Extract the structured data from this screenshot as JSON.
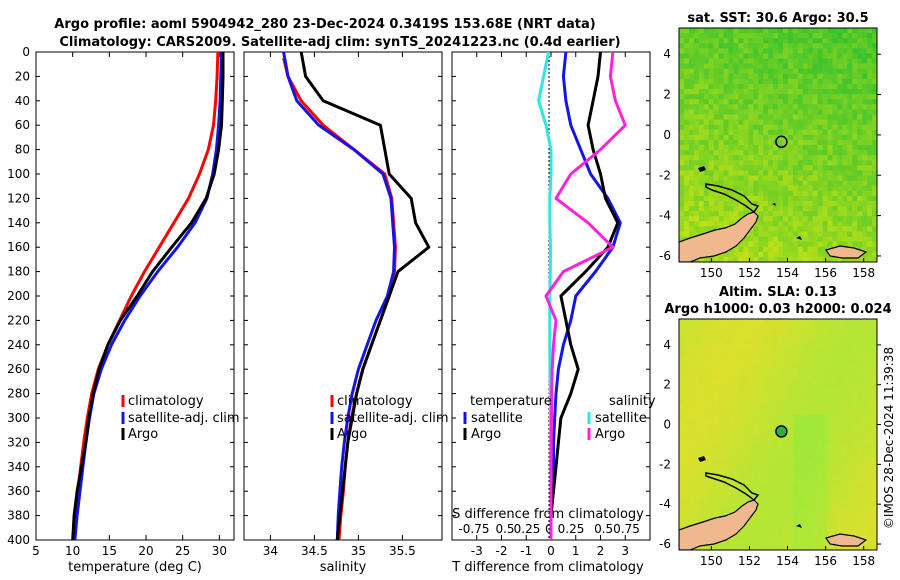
{
  "title_line1": "Argo profile: aoml 5904942_280 23-Dec-2024 0.3419S 153.68E (NRT data)",
  "title_line2": "Climatology: CARS2009. Satellite-adj clim: synTS_20241223.nc (0.4d earlier)",
  "watermark": "©IMOS 28-Dec-2024 11:39:38",
  "colors": {
    "red": "#ff0000",
    "blue": "#1414e6",
    "black": "#000000",
    "cyan": "#2ee6e6",
    "magenta": "#ff22dd"
  },
  "chart_data": [
    {
      "type": "line",
      "name": "temperature",
      "xlabel": "temperature (deg C)",
      "xlim": [
        5,
        32
      ],
      "xticks": [
        5,
        10,
        15,
        20,
        25,
        30
      ],
      "ylim": [
        0,
        400
      ],
      "yticks": [
        0,
        20,
        40,
        60,
        80,
        100,
        120,
        140,
        160,
        180,
        200,
        220,
        240,
        260,
        280,
        300,
        320,
        340,
        360,
        380,
        400
      ],
      "yreversed": true,
      "legend": [
        "climatology",
        "satellite-adj. clim",
        "Argo"
      ],
      "series": [
        {
          "name": "climatology",
          "color": "red",
          "points": [
            [
              29.8,
              0
            ],
            [
              29.7,
              20
            ],
            [
              29.5,
              40
            ],
            [
              29.2,
              60
            ],
            [
              28.5,
              80
            ],
            [
              27.3,
              100
            ],
            [
              25.8,
              120
            ],
            [
              23.8,
              140
            ],
            [
              21.8,
              160
            ],
            [
              19.8,
              180
            ],
            [
              18.0,
              200
            ],
            [
              16.4,
              220
            ],
            [
              14.8,
              240
            ],
            [
              13.5,
              260
            ],
            [
              12.6,
              280
            ],
            [
              12.0,
              300
            ],
            [
              11.5,
              320
            ],
            [
              11.1,
              340
            ],
            [
              10.7,
              360
            ],
            [
              10.4,
              380
            ],
            [
              10.2,
              400
            ]
          ]
        },
        {
          "name": "satellite-adj. clim",
          "color": "blue",
          "points": [
            [
              30.3,
              0
            ],
            [
              30.2,
              20
            ],
            [
              30.1,
              40
            ],
            [
              29.9,
              60
            ],
            [
              29.6,
              80
            ],
            [
              29.1,
              100
            ],
            [
              28.3,
              120
            ],
            [
              26.7,
              140
            ],
            [
              24.3,
              160
            ],
            [
              21.6,
              180
            ],
            [
              19.2,
              200
            ],
            [
              17.1,
              220
            ],
            [
              15.3,
              240
            ],
            [
              13.9,
              260
            ],
            [
              12.9,
              280
            ],
            [
              12.3,
              300
            ],
            [
              11.8,
              320
            ],
            [
              11.4,
              340
            ],
            [
              11.0,
              360
            ],
            [
              10.6,
              380
            ],
            [
              10.3,
              400
            ]
          ]
        },
        {
          "name": "Argo",
          "color": "black",
          "points": [
            [
              30.5,
              0
            ],
            [
              30.5,
              20
            ],
            [
              30.4,
              40
            ],
            [
              30.3,
              60
            ],
            [
              29.9,
              80
            ],
            [
              29.3,
              100
            ],
            [
              28.2,
              120
            ],
            [
              26.2,
              140
            ],
            [
              23.5,
              160
            ],
            [
              20.9,
              180
            ],
            [
              18.8,
              200
            ],
            [
              16.5,
              220
            ],
            [
              14.8,
              240
            ],
            [
              13.6,
              260
            ],
            [
              12.8,
              280
            ],
            [
              12.2,
              300
            ],
            [
              11.8,
              320
            ],
            [
              11.2,
              340
            ],
            [
              10.6,
              360
            ],
            [
              10.2,
              380
            ],
            [
              10.0,
              400
            ]
          ]
        }
      ]
    },
    {
      "type": "line",
      "name": "salinity",
      "xlabel": "salinity",
      "xlim": [
        33.7,
        35.95
      ],
      "xticks": [
        34,
        34.5,
        35,
        35.5
      ],
      "ylim": [
        0,
        400
      ],
      "yreversed": true,
      "legend": [
        "climatology",
        "satellite-adj. clim",
        "Argo"
      ],
      "series": [
        {
          "name": "climatology",
          "color": "red",
          "points": [
            [
              34.15,
              5
            ],
            [
              34.2,
              20
            ],
            [
              34.35,
              40
            ],
            [
              34.6,
              60
            ],
            [
              34.95,
              80
            ],
            [
              35.3,
              100
            ],
            [
              35.38,
              120
            ],
            [
              35.4,
              140
            ],
            [
              35.42,
              160
            ],
            [
              35.41,
              180
            ],
            [
              35.35,
              200
            ],
            [
              35.25,
              220
            ],
            [
              35.15,
              240
            ],
            [
              35.05,
              260
            ],
            [
              34.98,
              280
            ],
            [
              34.92,
              300
            ],
            [
              34.88,
              320
            ],
            [
              34.85,
              340
            ],
            [
              34.83,
              360
            ],
            [
              34.8,
              380
            ],
            [
              34.78,
              400
            ]
          ]
        },
        {
          "name": "satellite-adj. clim",
          "color": "blue",
          "points": [
            [
              34.15,
              0
            ],
            [
              34.2,
              20
            ],
            [
              34.3,
              40
            ],
            [
              34.55,
              60
            ],
            [
              34.95,
              80
            ],
            [
              35.28,
              100
            ],
            [
              35.37,
              120
            ],
            [
              35.39,
              140
            ],
            [
              35.41,
              160
            ],
            [
              35.4,
              180
            ],
            [
              35.33,
              200
            ],
            [
              35.2,
              220
            ],
            [
              35.1,
              240
            ],
            [
              35.0,
              260
            ],
            [
              34.93,
              280
            ],
            [
              34.88,
              300
            ],
            [
              34.84,
              320
            ],
            [
              34.81,
              340
            ],
            [
              34.79,
              360
            ],
            [
              34.77,
              380
            ],
            [
              34.76,
              400
            ]
          ]
        },
        {
          "name": "Argo",
          "color": "black",
          "points": [
            [
              34.35,
              0
            ],
            [
              34.4,
              20
            ],
            [
              34.6,
              40
            ],
            [
              35.25,
              60
            ],
            [
              35.3,
              80
            ],
            [
              35.35,
              100
            ],
            [
              35.6,
              120
            ],
            [
              35.65,
              140
            ],
            [
              35.8,
              160
            ],
            [
              35.45,
              180
            ],
            [
              35.35,
              200
            ],
            [
              35.25,
              220
            ],
            [
              35.15,
              240
            ],
            [
              35.05,
              260
            ],
            [
              34.98,
              280
            ],
            [
              34.93,
              300
            ],
            [
              34.88,
              320
            ],
            [
              34.85,
              340
            ],
            [
              34.82,
              360
            ],
            [
              34.79,
              380
            ],
            [
              34.76,
              400
            ]
          ]
        }
      ]
    },
    {
      "type": "line",
      "name": "difference",
      "xlabel": "T difference from climatology",
      "xlim": [
        -4,
        4
      ],
      "xticks": [
        -3,
        -2,
        -1,
        0,
        1,
        2,
        3
      ],
      "top_axis_label": "S difference from climatology",
      "top_ticks": [
        "-0.75",
        "0.5",
        "0.25",
        "0",
        "0.25",
        "0.50.75"
      ],
      "ylim": [
        0,
        400
      ],
      "yreversed": true,
      "legend_temperature": {
        "heading": "temperature",
        "entries": [
          "satellite",
          "Argo"
        ]
      },
      "legend_salinity": {
        "heading": "salinity",
        "entries": [
          "satellite",
          "Argo"
        ]
      },
      "series": [
        {
          "name": "temperature satellite",
          "color": "blue",
          "points": [
            [
              0.6,
              0
            ],
            [
              0.5,
              20
            ],
            [
              0.6,
              40
            ],
            [
              0.8,
              60
            ],
            [
              1.2,
              80
            ],
            [
              1.6,
              100
            ],
            [
              2.3,
              120
            ],
            [
              2.8,
              140
            ],
            [
              2.5,
              160
            ],
            [
              1.8,
              180
            ],
            [
              1.0,
              200
            ],
            [
              0.8,
              220
            ],
            [
              0.5,
              240
            ],
            [
              0.3,
              260
            ],
            [
              0.2,
              280
            ],
            [
              0.15,
              300
            ],
            [
              0.1,
              320
            ],
            [
              0.1,
              340
            ],
            [
              0.05,
              360
            ],
            [
              0.0,
              380
            ],
            [
              0.0,
              400
            ]
          ]
        },
        {
          "name": "temperature Argo",
          "color": "black",
          "points": [
            [
              2.0,
              0
            ],
            [
              1.9,
              20
            ],
            [
              1.7,
              40
            ],
            [
              1.5,
              60
            ],
            [
              1.7,
              80
            ],
            [
              2.0,
              100
            ],
            [
              2.2,
              120
            ],
            [
              2.7,
              140
            ],
            [
              2.3,
              160
            ],
            [
              1.4,
              180
            ],
            [
              0.4,
              200
            ],
            [
              0.6,
              220
            ],
            [
              0.8,
              240
            ],
            [
              1.1,
              260
            ],
            [
              0.8,
              280
            ],
            [
              0.4,
              300
            ],
            [
              0.3,
              320
            ],
            [
              0.2,
              340
            ],
            [
              0.1,
              360
            ],
            [
              0.0,
              380
            ],
            [
              0.0,
              400
            ]
          ]
        },
        {
          "name": "salinity satellite",
          "color": "cyan",
          "points": [
            [
              -0.1,
              0
            ],
            [
              -0.3,
              20
            ],
            [
              -0.5,
              40
            ],
            [
              -0.2,
              60
            ],
            [
              0.0,
              80
            ],
            [
              0.0,
              100
            ],
            [
              -0.05,
              120
            ],
            [
              -0.05,
              140
            ],
            [
              -0.02,
              160
            ],
            [
              -0.03,
              180
            ],
            [
              -0.05,
              200
            ],
            [
              -0.05,
              220
            ],
            [
              -0.05,
              240
            ],
            [
              -0.04,
              260
            ],
            [
              -0.03,
              280
            ],
            [
              -0.02,
              300
            ],
            [
              -0.01,
              320
            ],
            [
              -0.01,
              340
            ],
            [
              0.0,
              360
            ],
            [
              0.0,
              380
            ],
            [
              0.0,
              400
            ]
          ]
        },
        {
          "name": "salinity Argo",
          "color": "magenta",
          "points": [
            [
              2.5,
              0
            ],
            [
              2.4,
              20
            ],
            [
              2.6,
              40
            ],
            [
              3.0,
              60
            ],
            [
              2.0,
              80
            ],
            [
              0.8,
              100
            ],
            [
              0.2,
              120
            ],
            [
              1.5,
              140
            ],
            [
              2.5,
              160
            ],
            [
              0.5,
              180
            ],
            [
              -0.2,
              200
            ],
            [
              0.2,
              220
            ],
            [
              0.1,
              240
            ],
            [
              0.05,
              260
            ],
            [
              0.03,
              280
            ],
            [
              0.02,
              300
            ],
            [
              0.01,
              320
            ],
            [
              0.0,
              340
            ],
            [
              0.0,
              360
            ],
            [
              0.0,
              380
            ],
            [
              0.0,
              400
            ]
          ]
        }
      ]
    },
    {
      "type": "heatmap",
      "name": "sst-map",
      "title": "sat. SST: 30.6 Argo: 30.5",
      "xlim": [
        148.3,
        158.7
      ],
      "xticks": [
        150,
        152,
        154,
        156,
        158
      ],
      "ylim": [
        -6.3,
        5.3
      ],
      "yticks": [
        4,
        2,
        0,
        -2,
        -4,
        -6
      ],
      "marker": {
        "lon": 153.68,
        "lat": -0.3419
      }
    },
    {
      "type": "heatmap",
      "name": "sla-map",
      "title_line1": "Altim. SLA: 0.13",
      "title_line2": "Argo h1000: 0.03 h2000: 0.024",
      "xlim": [
        148.3,
        158.7
      ],
      "xticks": [
        150,
        152,
        154,
        156,
        158
      ],
      "ylim": [
        -6.3,
        5.3
      ],
      "yticks": [
        4,
        2,
        0,
        -2,
        -4,
        -6
      ],
      "marker": {
        "lon": 153.68,
        "lat": -0.3419
      }
    }
  ]
}
